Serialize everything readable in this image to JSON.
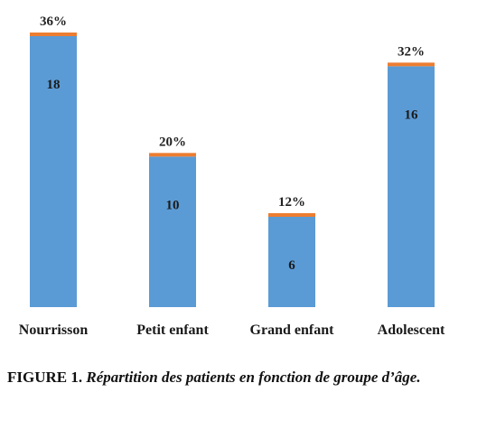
{
  "chart_data": {
    "type": "bar",
    "categories": [
      "Nourrisson",
      "Petit enfant",
      "Grand enfant",
      "Adolescent"
    ],
    "values": [
      18,
      10,
      6,
      16
    ],
    "percent_labels": [
      "36%",
      "20%",
      "12%",
      "32%"
    ],
    "title": "",
    "xlabel": "",
    "ylabel": "",
    "ylim": [
      0,
      18.3
    ],
    "grid": false,
    "colors": {
      "bar": "#5b9bd5",
      "cap": "#ed7d31"
    }
  },
  "caption": {
    "figure_number": "FIGURE 1.",
    "text": "Répartition des patients en fonction de groupe d’âge."
  }
}
